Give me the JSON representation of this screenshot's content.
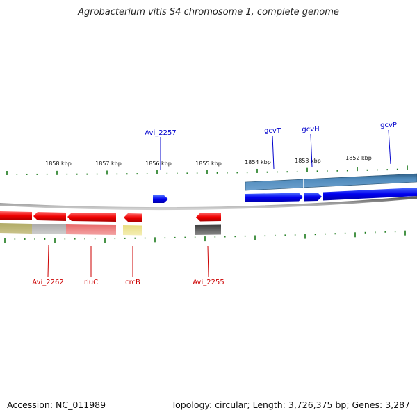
{
  "title": "Agrobacterium vitis S4 chromosome 1, complete genome",
  "footer": {
    "accession": "Accession: NC_011989",
    "summary": "Topology: circular; Length: 3,726,375 bp; Genes: 3,287"
  },
  "scale_labels": [
    "1858 kbp",
    "1857 kbp",
    "1856 kbp",
    "1855 kbp",
    "1854 kbp",
    "1853 kbp",
    "1852 kbp"
  ],
  "genes_top": [
    {
      "name": "Avi_2257",
      "color": "#0000cc"
    },
    {
      "name": "gcvT",
      "color": "#0000cc"
    },
    {
      "name": "gcvH",
      "color": "#0000cc"
    },
    {
      "name": "gcvP",
      "color": "#0000cc"
    }
  ],
  "genes_bottom": [
    {
      "name": "Avi_2262",
      "color": "#cc0000"
    },
    {
      "name": "rluC",
      "color": "#cc0000"
    },
    {
      "name": "crcB",
      "color": "#cc0000"
    },
    {
      "name": "Avi_2255",
      "color": "#cc0000"
    }
  ],
  "colors": {
    "forward_strand": "#0000ee",
    "reverse_strand": "#ee0000",
    "tick": "#1a7a1a",
    "backbone": "#808080"
  }
}
